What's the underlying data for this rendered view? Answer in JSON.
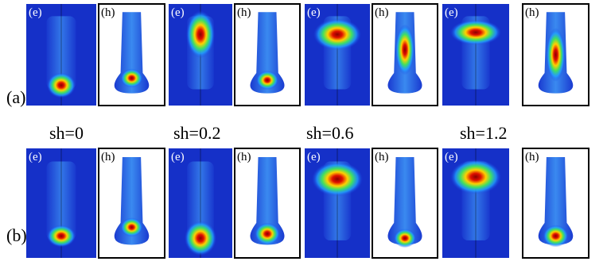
{
  "row_labels": [
    "(a)",
    "(b)"
  ],
  "column_labels": [
    "sh=0",
    "sh=0.2",
    "sh=0.6",
    "sh=1.2"
  ],
  "panel_labels": {
    "e": "(e)",
    "h": "(h)"
  }
}
